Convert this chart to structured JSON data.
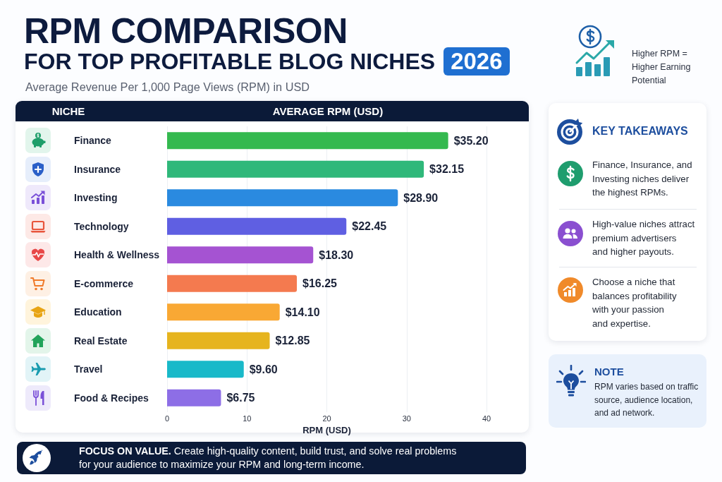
{
  "chart_data": {
    "type": "bar",
    "orientation": "horizontal",
    "title": "RPM COMPARISON\nFOR TOP PROFITABLE BLOG NICHES 2026",
    "subtitle": "Average Revenue Per 1,000 Page Views (RPM) in USD",
    "ylabel": "NICHE",
    "xlabel": "RPM (USD)",
    "categories": [
      "Finance",
      "Insurance",
      "Investing",
      "Technology",
      "Health & Wellness",
      "E-commerce",
      "Education",
      "Real Estate",
      "Travel",
      "Food & Recipes"
    ],
    "values": [
      35.2,
      32.15,
      28.9,
      22.45,
      18.3,
      16.25,
      14.1,
      12.85,
      9.6,
      6.75
    ],
    "value_labels": [
      "$35.20",
      "$32.15",
      "$28.90",
      "$22.45",
      "$18.30",
      "$16.25",
      "$14.10",
      "$12.85",
      "$9.60",
      "$6.75"
    ],
    "colors": [
      "#34b94f",
      "#2fb87a",
      "#2a8ae0",
      "#5f5fe2",
      "#a553d2",
      "#f47a4f",
      "#f9a834",
      "#e6b41e",
      "#19b9c9",
      "#8d6ee6"
    ],
    "xlim": [
      0,
      40
    ],
    "xticks": [
      0,
      10,
      20,
      30,
      40
    ],
    "grid": "x",
    "annotations": [
      "AVERAGE RPM (USD)",
      "Higher RPM =\nHigher Earning\nPotential",
      "KEY TAKEAWAYS",
      "Finance, Insurance, and\nInvesting niches deliver\nthe highest RPMs.",
      "High-value niches attract\npremium advertisers\nand higher payouts.",
      "Choose a niche that\nbalances profitability\nwith your passion\nand expertise.",
      "NOTE",
      "RPM varies based on traffic\nsource, audience location,\nand ad network.",
      "FOCUS ON VALUE.",
      "Create high-quality content, build trust, and solve real problems\nfor your audience to maximize your RPM and long-term income."
    ]
  }
}
